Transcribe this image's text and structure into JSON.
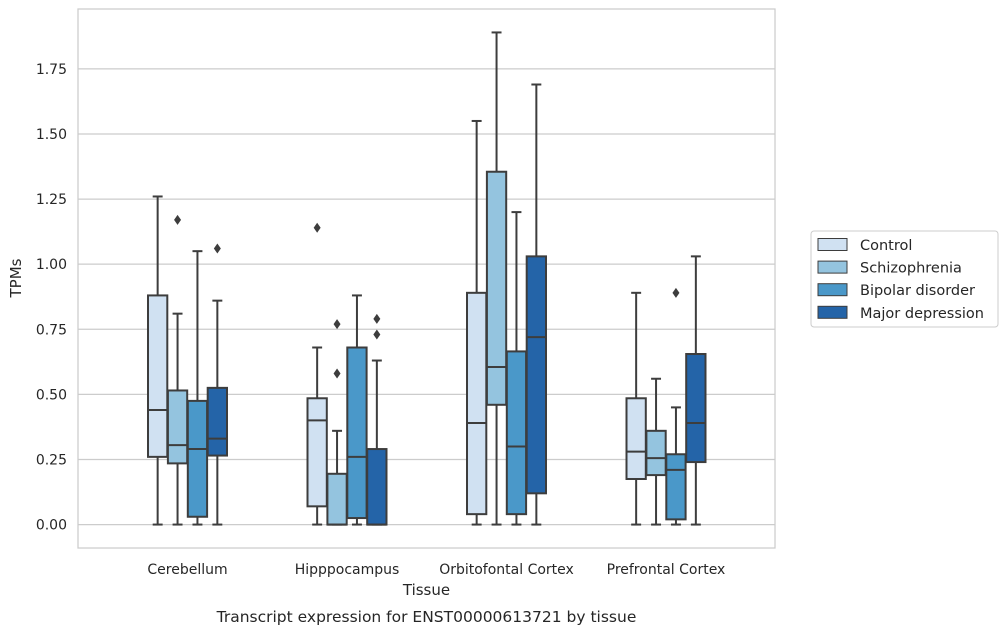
{
  "caption": "Transcript expression for ENST00000613721 by tissue",
  "chart_data": {
    "type": "boxplot",
    "xlabel": "Tissue",
    "ylabel": "TPMs",
    "ylim": [
      -0.09,
      1.98
    ],
    "yticks": [
      "0.00",
      "0.25",
      "0.50",
      "0.75",
      "1.00",
      "1.25",
      "1.50",
      "1.75"
    ],
    "grid": "horizontal",
    "legend_position": "right",
    "categories": [
      "Cerebellum",
      "Hipppocampus",
      "Orbitofontal Cortex",
      "Prefrontal Cortex"
    ],
    "series": [
      {
        "name": "Control",
        "color": "#d0e1f2",
        "boxes": [
          {
            "min": 0.0,
            "q1": 0.26,
            "median": 0.44,
            "q3": 0.88,
            "max": 1.26,
            "outliers": []
          },
          {
            "min": 0.0,
            "q1": 0.07,
            "median": 0.4,
            "q3": 0.485,
            "max": 0.68,
            "outliers": [
              1.14
            ]
          },
          {
            "min": 0.0,
            "q1": 0.04,
            "median": 0.39,
            "q3": 0.89,
            "max": 1.55,
            "outliers": []
          },
          {
            "min": 0.0,
            "q1": 0.175,
            "median": 0.28,
            "q3": 0.485,
            "max": 0.89,
            "outliers": []
          }
        ]
      },
      {
        "name": "Schizophrenia",
        "color": "#94c4df",
        "boxes": [
          {
            "min": 0.0,
            "q1": 0.235,
            "median": 0.305,
            "q3": 0.515,
            "max": 0.81,
            "outliers": [
              1.17
            ]
          },
          {
            "min": 0.0,
            "q1": 0.0,
            "median": 0.0,
            "q3": 0.195,
            "max": 0.36,
            "outliers": [
              0.58,
              0.77
            ]
          },
          {
            "min": 0.0,
            "q1": 0.46,
            "median": 0.605,
            "q3": 1.355,
            "max": 1.89,
            "outliers": []
          },
          {
            "min": 0.0,
            "q1": 0.19,
            "median": 0.255,
            "q3": 0.36,
            "max": 0.56,
            "outliers": []
          }
        ]
      },
      {
        "name": "Bipolar disorder",
        "color": "#4a98c9",
        "boxes": [
          {
            "min": 0.0,
            "q1": 0.03,
            "median": 0.29,
            "q3": 0.475,
            "max": 1.05,
            "outliers": []
          },
          {
            "min": 0.0,
            "q1": 0.025,
            "median": 0.26,
            "q3": 0.68,
            "max": 0.88,
            "outliers": []
          },
          {
            "min": 0.0,
            "q1": 0.04,
            "median": 0.3,
            "q3": 0.665,
            "max": 1.2,
            "outliers": []
          },
          {
            "min": 0.0,
            "q1": 0.02,
            "median": 0.21,
            "q3": 0.27,
            "max": 0.45,
            "outliers": [
              0.89
            ]
          }
        ]
      },
      {
        "name": "Major depression",
        "color": "#2464a8",
        "boxes": [
          {
            "min": 0.0,
            "q1": 0.265,
            "median": 0.33,
            "q3": 0.525,
            "max": 0.86,
            "outliers": [
              1.06
            ]
          },
          {
            "min": 0.0,
            "q1": 0.0,
            "median": 0.0,
            "q3": 0.29,
            "max": 0.63,
            "outliers": [
              0.73,
              0.79
            ]
          },
          {
            "min": 0.0,
            "q1": 0.12,
            "median": 0.72,
            "q3": 1.03,
            "max": 1.69,
            "outliers": []
          },
          {
            "min": 0.0,
            "q1": 0.24,
            "median": 0.39,
            "q3": 0.655,
            "max": 1.03,
            "outliers": []
          }
        ]
      }
    ]
  }
}
